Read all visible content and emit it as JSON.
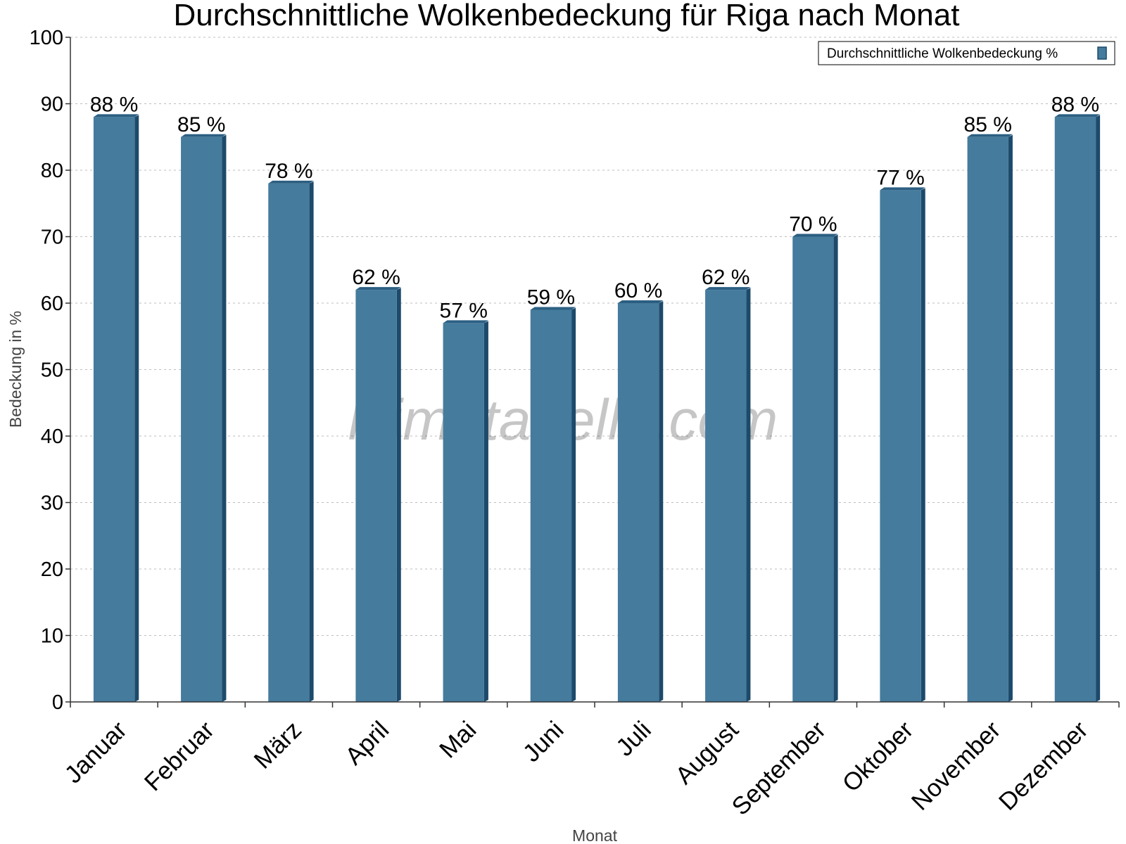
{
  "chart_data": {
    "type": "bar",
    "title": "Durchschnittliche Wolkenbedeckung für Riga nach Monat",
    "xlabel": "Monat",
    "ylabel": "Bedeckung in %",
    "ylim": [
      0,
      100
    ],
    "yticks": [
      "0",
      "10",
      "20",
      "30",
      "40",
      "50",
      "60",
      "70",
      "80",
      "90",
      "100"
    ],
    "categories": [
      "Januar",
      "Februar",
      "März",
      "April",
      "Mai",
      "Juni",
      "Juli",
      "August",
      "September",
      "Oktober",
      "November",
      "Dezember"
    ],
    "series": [
      {
        "name": "Durchschnittliche Wolkenbedeckung %",
        "values": [
          88,
          85,
          78,
          62,
          57,
          59,
          60,
          62,
          70,
          77,
          85,
          88
        ],
        "labels": [
          "88 %",
          "85 %",
          "78 %",
          "62 %",
          "57 %",
          "59 %",
          "60 %",
          "62 %",
          "70 %",
          "77 %",
          "85 %",
          "88 %"
        ]
      }
    ],
    "grid": true,
    "legend_position": "top-right",
    "colors": {
      "bar": "#457b9d",
      "bar_side": "#1d4a6b",
      "bar_top": "#2c5f82"
    },
    "watermark": "klimatabelle.com"
  }
}
